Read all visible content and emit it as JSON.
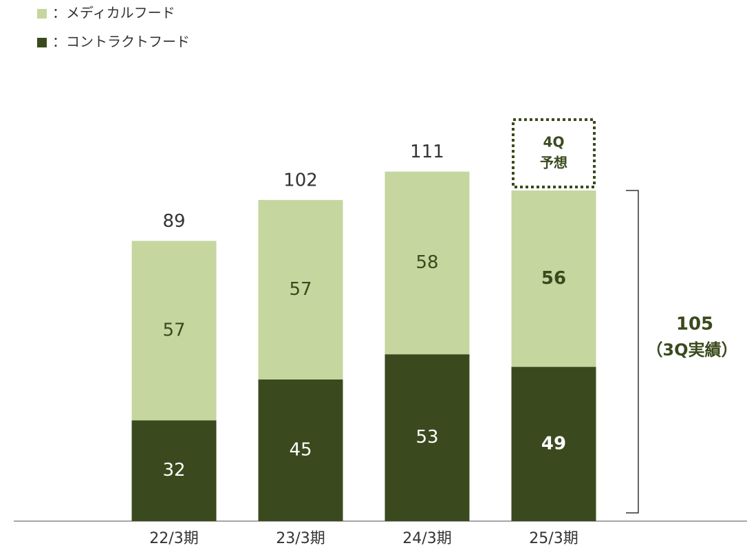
{
  "chart_data": {
    "type": "stacked_bar",
    "categories": [
      "22/3期",
      "23/3期",
      "24/3期",
      "25/3期"
    ],
    "series": [
      {
        "name": "：コントラクトフード",
        "color": "#3a4a1e",
        "values": [
          32,
          45,
          53,
          49
        ]
      },
      {
        "name": "：メディカルフード",
        "color": "#c5d69f",
        "values": [
          57,
          57,
          58,
          56
        ]
      }
    ],
    "totals": [
      89,
      102,
      111,
      null
    ],
    "forecast_label": [
      "4Q",
      "予想"
    ],
    "bracket": {
      "value": 105,
      "note": "（3Q実績）"
    }
  }
}
